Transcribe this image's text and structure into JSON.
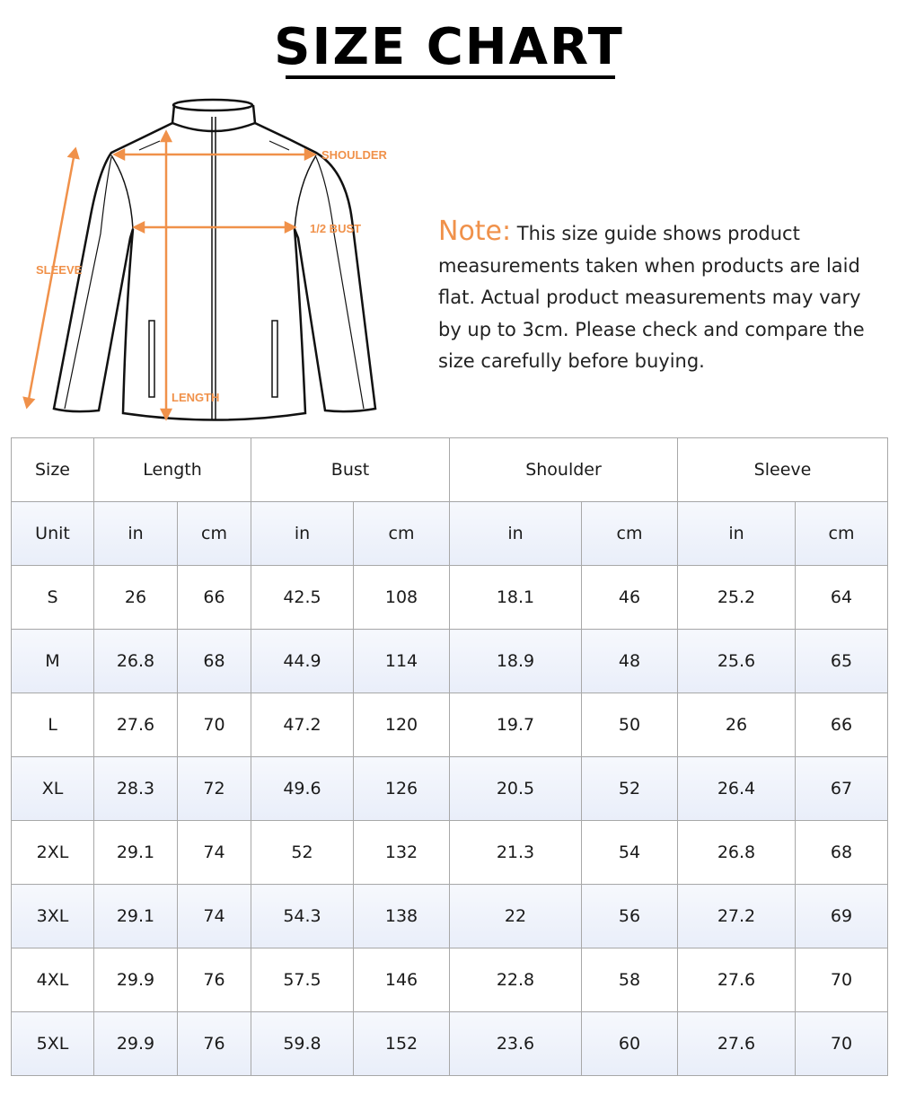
{
  "title": "SIZE CHART",
  "diagram": {
    "labels": {
      "shoulder": "SHOULDER",
      "bust": "1/2 BUST",
      "sleeve": "SLEEVE",
      "length": "LENGTH"
    },
    "accent": "#f0914a"
  },
  "note": {
    "label": "Note:",
    "text": " This size guide shows product measurements taken when products are laid flat. Actual product measurements may vary by up to 3cm. Please check and compare the size carefully before buying."
  },
  "table": {
    "headers": [
      "Size",
      "Length",
      "Bust",
      "Shoulder",
      "Sleeve"
    ],
    "units": [
      "Unit",
      "in",
      "cm",
      "in",
      "cm",
      "in",
      "cm",
      "in",
      "cm"
    ],
    "rows": [
      [
        "S",
        "26",
        "66",
        "42.5",
        "108",
        "18.1",
        "46",
        "25.2",
        "64"
      ],
      [
        "M",
        "26.8",
        "68",
        "44.9",
        "114",
        "18.9",
        "48",
        "25.6",
        "65"
      ],
      [
        "L",
        "27.6",
        "70",
        "47.2",
        "120",
        "19.7",
        "50",
        "26",
        "66"
      ],
      [
        "XL",
        "28.3",
        "72",
        "49.6",
        "126",
        "20.5",
        "52",
        "26.4",
        "67"
      ],
      [
        "2XL",
        "29.1",
        "74",
        "52",
        "132",
        "21.3",
        "54",
        "26.8",
        "68"
      ],
      [
        "3XL",
        "29.1",
        "74",
        "54.3",
        "138",
        "22",
        "56",
        "27.2",
        "69"
      ],
      [
        "4XL",
        "29.9",
        "76",
        "57.5",
        "146",
        "22.8",
        "58",
        "27.6",
        "70"
      ],
      [
        "5XL",
        "29.9",
        "76",
        "59.8",
        "152",
        "23.6",
        "60",
        "27.6",
        "70"
      ]
    ]
  }
}
